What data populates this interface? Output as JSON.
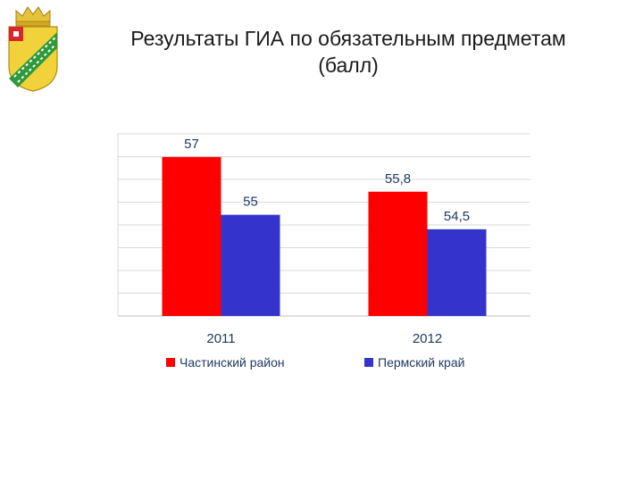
{
  "slide": {
    "title_line1": "Результаты ГИА по обязательным предметам",
    "title_line2": "(балл)"
  },
  "colors": {
    "series1": "#fe0000",
    "series2": "#3434cc",
    "grid": "#d9d9d9"
  },
  "chart_data": {
    "type": "bar",
    "categories": [
      "2011",
      "2012"
    ],
    "series": [
      {
        "name": "Частинский район",
        "values": [
          57,
          55.8
        ],
        "labels": [
          "57",
          "55,8"
        ]
      },
      {
        "name": "Пермский край",
        "values": [
          55,
          54.5
        ],
        "labels": [
          "55",
          "54,5"
        ]
      }
    ],
    "ylim": [
      51.5,
      57.8
    ],
    "grid": true,
    "legend_position": "bottom"
  }
}
